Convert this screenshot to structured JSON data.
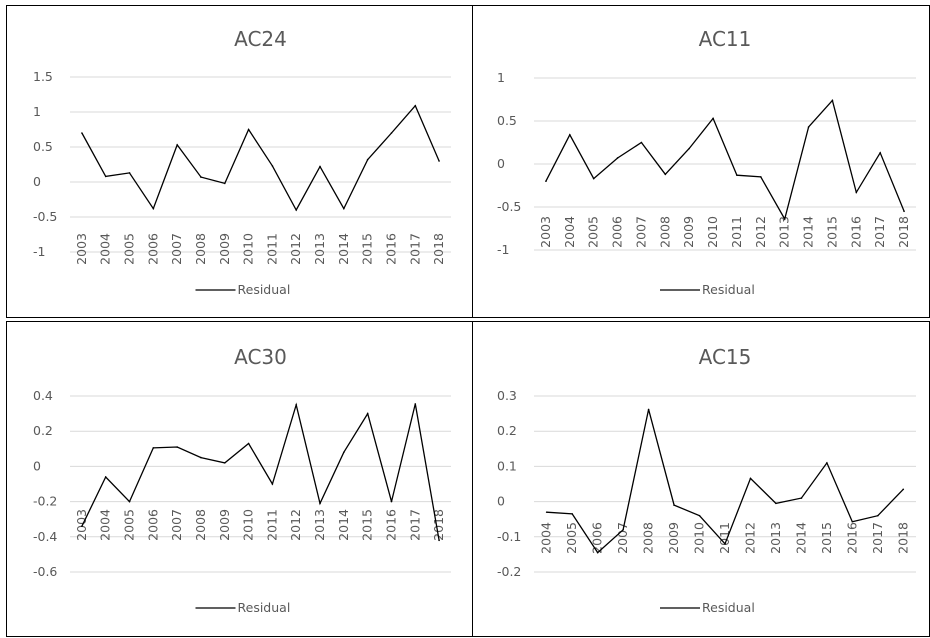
{
  "chart_data": [
    {
      "type": "line",
      "title": "AC24",
      "x": [
        "2003",
        "2004",
        "2005",
        "2006",
        "2007",
        "2008",
        "2009",
        "2010",
        "2011",
        "2012",
        "2013",
        "2014",
        "2015",
        "2016",
        "2017",
        "2018"
      ],
      "yticks": [
        "1.5",
        "1",
        "0.5",
        "0",
        "-0.5",
        "-1"
      ],
      "ylim": [
        -1,
        1.5
      ],
      "series": [
        {
          "name": "Residual",
          "values": [
            0.7,
            0.08,
            0.13,
            -0.38,
            0.53,
            0.07,
            -0.02,
            0.75,
            0.23,
            -0.4,
            0.22,
            -0.38,
            0.32,
            0.7,
            1.09,
            0.3
          ]
        }
      ],
      "legend": "bottom",
      "grid": true
    },
    {
      "type": "line",
      "title": "AC11",
      "x": [
        "2003",
        "2004",
        "2005",
        "2006",
        "2007",
        "2008",
        "2009",
        "2010",
        "2011",
        "2012",
        "2013",
        "2014",
        "2015",
        "2016",
        "2017",
        "2018"
      ],
      "yticks": [
        "1",
        "0.5",
        "0",
        "-0.5",
        "-1"
      ],
      "ylim": [
        -1,
        1
      ],
      "series": [
        {
          "name": "Residual",
          "values": [
            -0.2,
            0.34,
            -0.17,
            0.07,
            0.25,
            -0.12,
            0.18,
            0.53,
            -0.13,
            -0.15,
            -0.64,
            0.43,
            0.74,
            -0.33,
            0.13,
            -0.55
          ]
        }
      ],
      "legend": "bottom",
      "grid": true
    },
    {
      "type": "line",
      "title": "AC30",
      "x": [
        "2003",
        "2004",
        "2005",
        "2006",
        "2007",
        "2008",
        "2009",
        "2010",
        "2011",
        "2012",
        "2013",
        "2014",
        "2015",
        "2016",
        "2017",
        "2018"
      ],
      "yticks": [
        "0.4",
        "0.2",
        "0",
        "-0.2",
        "-0.4",
        "-0.6"
      ],
      "ylim": [
        -0.6,
        0.4
      ],
      "series": [
        {
          "name": "Residual",
          "values": [
            -0.34,
            -0.06,
            -0.2,
            0.105,
            0.11,
            0.05,
            0.02,
            0.13,
            -0.1,
            0.35,
            -0.21,
            0.08,
            0.3,
            -0.2,
            0.355,
            -0.42
          ]
        }
      ],
      "legend": "bottom",
      "grid": true
    },
    {
      "type": "line",
      "title": "AC15",
      "x": [
        "2004",
        "2005",
        "2006",
        "2007",
        "2008",
        "2009",
        "2010",
        "2011",
        "2012",
        "2013",
        "2014",
        "2015",
        "2016",
        "2017",
        "2018"
      ],
      "yticks": [
        "0.3",
        "0.2",
        "0.1",
        "0",
        "-0.1",
        "-0.2"
      ],
      "ylim": [
        -0.2,
        0.3
      ],
      "series": [
        {
          "name": "Residual",
          "values": [
            -0.03,
            -0.035,
            -0.145,
            -0.08,
            0.262,
            -0.01,
            -0.04,
            -0.12,
            0.066,
            -0.005,
            0.01,
            0.11,
            -0.057,
            -0.04,
            0.035
          ]
        }
      ],
      "legend": "bottom",
      "grid": true
    }
  ]
}
